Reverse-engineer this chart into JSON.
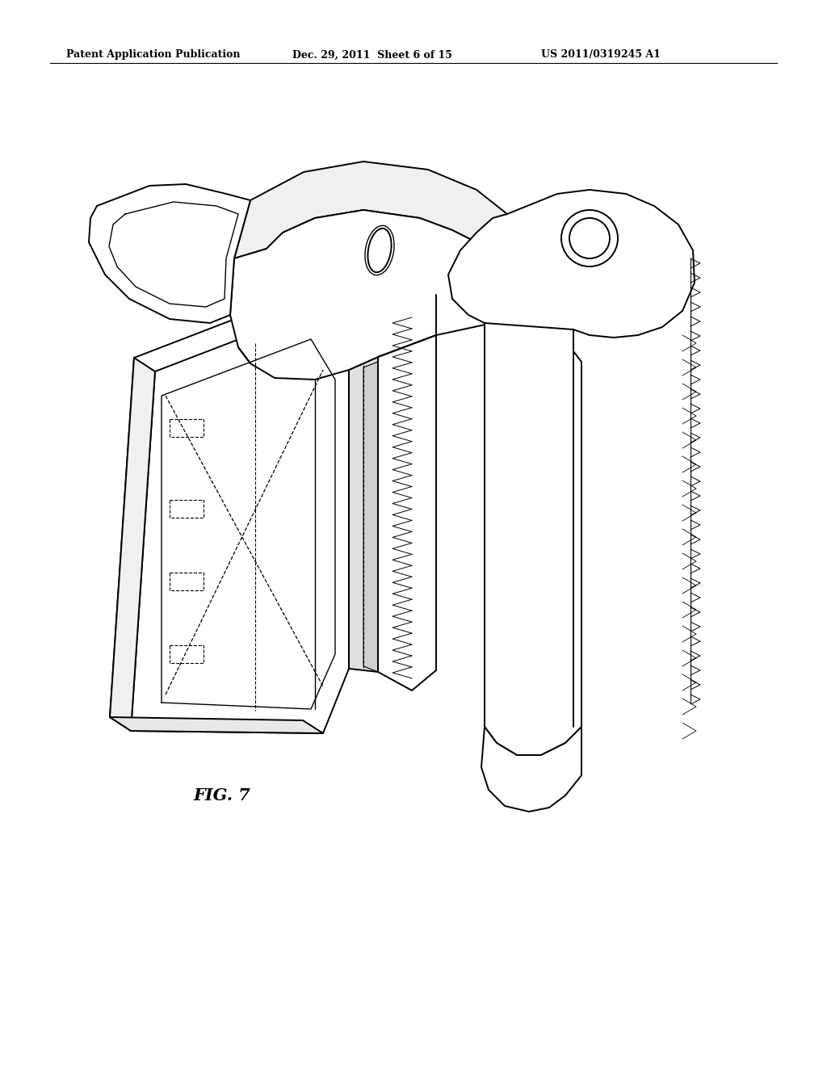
{
  "background_color": "#ffffff",
  "header_left": "Patent Application Publication",
  "header_center": "Dec. 29, 2011  Sheet 6 of 15",
  "header_right": "US 2011/0319245 A1",
  "figure_label": "FIG. 7",
  "line_color": "#000000",
  "line_width": 1.4
}
